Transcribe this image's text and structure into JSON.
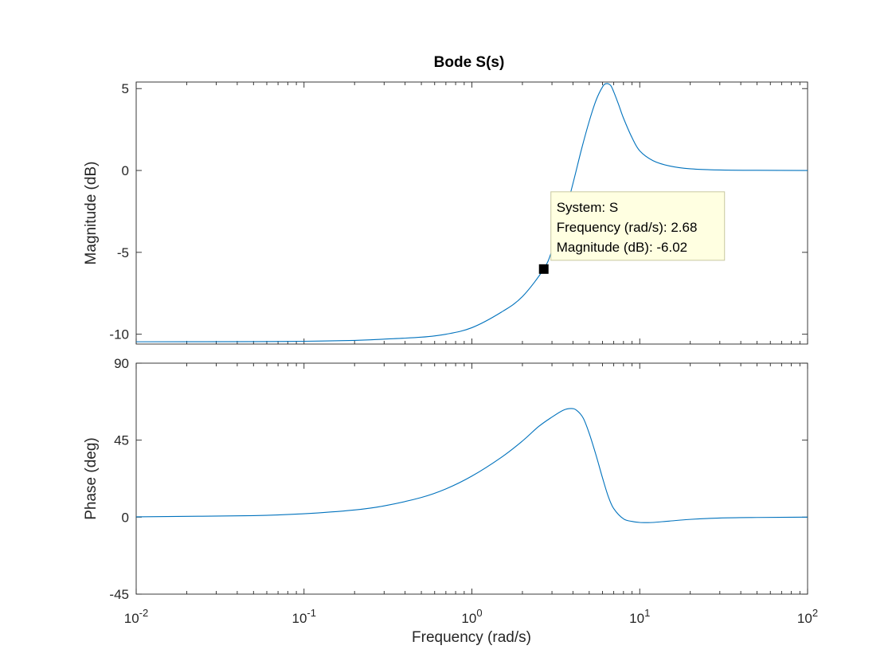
{
  "chart_data": {
    "type": "line",
    "title": "Bode S(s)",
    "xlabel": "Frequency  (rad/s)",
    "x_scale": "log",
    "xlim": [
      0.01,
      100
    ],
    "x_ticks": [
      {
        "value": 0.01,
        "base": "10",
        "exp": "-2"
      },
      {
        "value": 0.1,
        "base": "10",
        "exp": "-1"
      },
      {
        "value": 1,
        "base": "10",
        "exp": "0"
      },
      {
        "value": 10,
        "base": "10",
        "exp": "1"
      },
      {
        "value": 100,
        "base": "10",
        "exp": "2"
      }
    ],
    "grid": false,
    "line_color": "#0072bd",
    "subplots": [
      {
        "name": "magnitude",
        "ylabel": "Magnitude (dB)",
        "ylim": [
          -10.6,
          5.4
        ],
        "y_ticks": [
          5,
          0,
          -5,
          -10
        ],
        "y_tick_labels": [
          "5",
          "0",
          "-5",
          "-10"
        ],
        "series": {
          "x": [
            0.01,
            0.05,
            0.1,
            0.2,
            0.3,
            0.5,
            0.7,
            1.0,
            1.5,
            2.0,
            2.68,
            3.0,
            3.5,
            4.0,
            4.5,
            5.0,
            5.5,
            6.0,
            6.3,
            6.7,
            7.0,
            7.5,
            8.0,
            9.0,
            10,
            12,
            15,
            20,
            30,
            50,
            100
          ],
          "y": [
            -10.46,
            -10.45,
            -10.43,
            -10.38,
            -10.3,
            -10.18,
            -10.0,
            -9.6,
            -8.65,
            -7.7,
            -6.02,
            -4.9,
            -3.0,
            -0.8,
            1.3,
            3.0,
            4.3,
            5.1,
            5.3,
            5.2,
            4.8,
            4.0,
            3.2,
            2.0,
            1.2,
            0.6,
            0.28,
            0.1,
            0.03,
            0.01,
            0.0
          ]
        }
      },
      {
        "name": "phase",
        "ylabel": "Phase (deg)",
        "ylim": [
          -45,
          90
        ],
        "y_ticks": [
          90,
          45,
          0,
          -45
        ],
        "y_tick_labels": [
          "90",
          "45",
          "0",
          "-45"
        ],
        "series": {
          "x": [
            0.01,
            0.05,
            0.1,
            0.2,
            0.3,
            0.5,
            0.7,
            1.0,
            1.5,
            2.0,
            2.5,
            3.0,
            3.5,
            3.9,
            4.2,
            4.6,
            5.0,
            5.5,
            6.0,
            6.5,
            7.0,
            8.0,
            9.0,
            10,
            11,
            12,
            15,
            20,
            30,
            50,
            100
          ],
          "y": [
            0.2,
            0.9,
            2.0,
            4.2,
            6.6,
            11.5,
            16.5,
            24.0,
            35.0,
            44.5,
            53.0,
            58.5,
            62.5,
            63.5,
            62.5,
            58.0,
            49.0,
            36.0,
            23.0,
            12.0,
            5.0,
            -1.0,
            -2.5,
            -3.1,
            -3.2,
            -3.1,
            -2.3,
            -1.3,
            -0.5,
            -0.2,
            0.0
          ]
        }
      }
    ],
    "datatip": {
      "x": 2.68,
      "y": -6.02,
      "lines": [
        "System: S",
        "Frequency (rad/s): 2.68",
        "Magnitude (dB): -6.02"
      ]
    }
  }
}
